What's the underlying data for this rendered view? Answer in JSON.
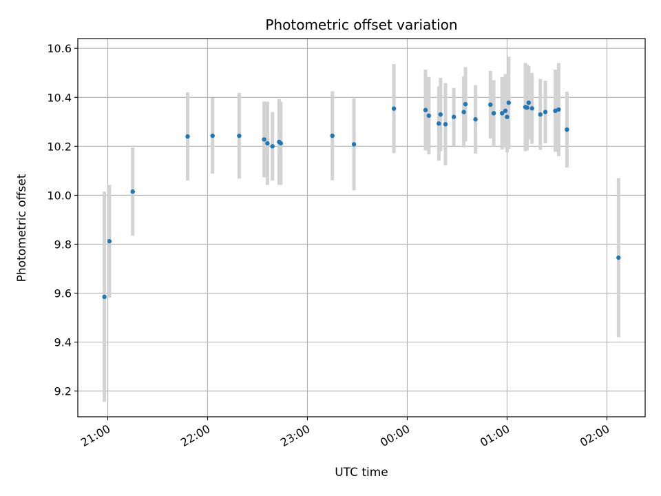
{
  "chart_data": {
    "type": "scatter",
    "title": "Photometric offset variation",
    "xlabel": "UTC time",
    "ylabel": "Photometric offset",
    "x_axis": "time",
    "xlim": [
      "20:42",
      "02:23"
    ],
    "ylim": [
      9.095,
      10.64
    ],
    "grid": true,
    "x_ticks": [
      "21:00",
      "22:00",
      "23:00",
      "00:00",
      "01:00",
      "02:00"
    ],
    "y_ticks": [
      "9.2",
      "9.4",
      "9.6",
      "9.8",
      "10.0",
      "10.2",
      "10.4",
      "10.6"
    ],
    "point_color": "#1f77b4",
    "errorbar_color": "#d3d3d3",
    "points": [
      {
        "x": "20:58",
        "y": 9.585,
        "err": 0.43
      },
      {
        "x": "21:01",
        "y": 9.812,
        "err": 0.23
      },
      {
        "x": "21:15",
        "y": 10.015,
        "err": 0.18
      },
      {
        "x": "21:48",
        "y": 10.24,
        "err": 0.18
      },
      {
        "x": "22:03",
        "y": 10.243,
        "err": 0.155
      },
      {
        "x": "22:19",
        "y": 10.243,
        "err": 0.175
      },
      {
        "x": "22:34",
        "y": 10.228,
        "err": 0.155
      },
      {
        "x": "22:36",
        "y": 10.212,
        "err": 0.17
      },
      {
        "x": "22:39",
        "y": 10.2,
        "err": 0.14
      },
      {
        "x": "22:43",
        "y": 10.218,
        "err": 0.175
      },
      {
        "x": "22:44",
        "y": 10.212,
        "err": 0.17
      },
      {
        "x": "23:15",
        "y": 10.243,
        "err": 0.182
      },
      {
        "x": "23:28",
        "y": 10.208,
        "err": 0.188
      },
      {
        "x": "23:52",
        "y": 10.354,
        "err": 0.182
      },
      {
        "x": "00:11",
        "y": 10.348,
        "err": 0.165
      },
      {
        "x": "00:13",
        "y": 10.325,
        "err": 0.158
      },
      {
        "x": "00:19",
        "y": 10.293,
        "err": 0.152
      },
      {
        "x": "00:20",
        "y": 10.33,
        "err": 0.15
      },
      {
        "x": "00:23",
        "y": 10.29,
        "err": 0.168
      },
      {
        "x": "00:28",
        "y": 10.32,
        "err": 0.118
      },
      {
        "x": "00:34",
        "y": 10.34,
        "err": 0.145
      },
      {
        "x": "00:35",
        "y": 10.372,
        "err": 0.152
      },
      {
        "x": "00:41",
        "y": 10.31,
        "err": 0.14
      },
      {
        "x": "00:50",
        "y": 10.37,
        "err": 0.138
      },
      {
        "x": "00:52",
        "y": 10.335,
        "err": 0.135
      },
      {
        "x": "00:57",
        "y": 10.335,
        "err": 0.148
      },
      {
        "x": "00:59",
        "y": 10.345,
        "err": 0.15
      },
      {
        "x": "01:00",
        "y": 10.32,
        "err": 0.145
      },
      {
        "x": "01:01",
        "y": 10.378,
        "err": 0.188
      },
      {
        "x": "01:11",
        "y": 10.36,
        "err": 0.18
      },
      {
        "x": "01:12",
        "y": 10.358,
        "err": 0.175
      },
      {
        "x": "01:13",
        "y": 10.378,
        "err": 0.15
      },
      {
        "x": "01:15",
        "y": 10.355,
        "err": 0.145
      },
      {
        "x": "01:20",
        "y": 10.33,
        "err": 0.145
      },
      {
        "x": "01:23",
        "y": 10.34,
        "err": 0.128
      },
      {
        "x": "01:29",
        "y": 10.345,
        "err": 0.168
      },
      {
        "x": "01:31",
        "y": 10.35,
        "err": 0.19
      },
      {
        "x": "01:36",
        "y": 10.268,
        "err": 0.155
      },
      {
        "x": "02:07",
        "y": 9.745,
        "err": 0.325
      }
    ]
  }
}
